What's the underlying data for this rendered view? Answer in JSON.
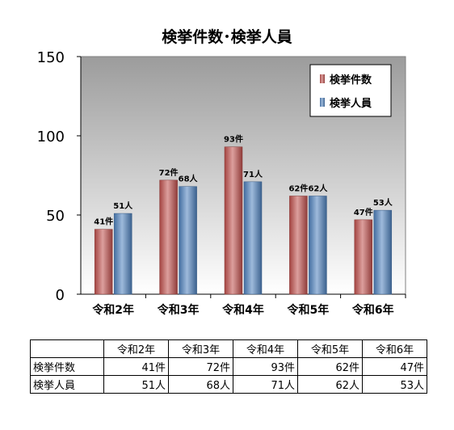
{
  "chart_data": {
    "type": "bar",
    "title": "検挙件数･検挙人員",
    "categories": [
      "令和2年",
      "令和3年",
      "令和4年",
      "令和5年",
      "令和6年"
    ],
    "series": [
      {
        "name": "検挙件数",
        "values": [
          41,
          72,
          93,
          62,
          47
        ],
        "unit": "件",
        "color": "#c0504d"
      },
      {
        "name": "検挙人員",
        "values": [
          51,
          68,
          71,
          62,
          53
        ],
        "unit": "人",
        "color": "#4f81bd"
      }
    ],
    "ylim": [
      0,
      150
    ],
    "yticks": [
      0,
      50,
      100,
      150
    ],
    "legend_position": "top-right",
    "grid": false,
    "plot_background": "gradient-gray"
  },
  "table": {
    "headers": [
      "令和2年",
      "令和3年",
      "令和4年",
      "令和5年",
      "令和6年"
    ],
    "rows": [
      {
        "label": "検挙件数",
        "cells": [
          "41件",
          "72件",
          "93件",
          "62件",
          "47件"
        ]
      },
      {
        "label": "検挙人員",
        "cells": [
          "51人",
          "68人",
          "71人",
          "62人",
          "53人"
        ]
      }
    ]
  }
}
